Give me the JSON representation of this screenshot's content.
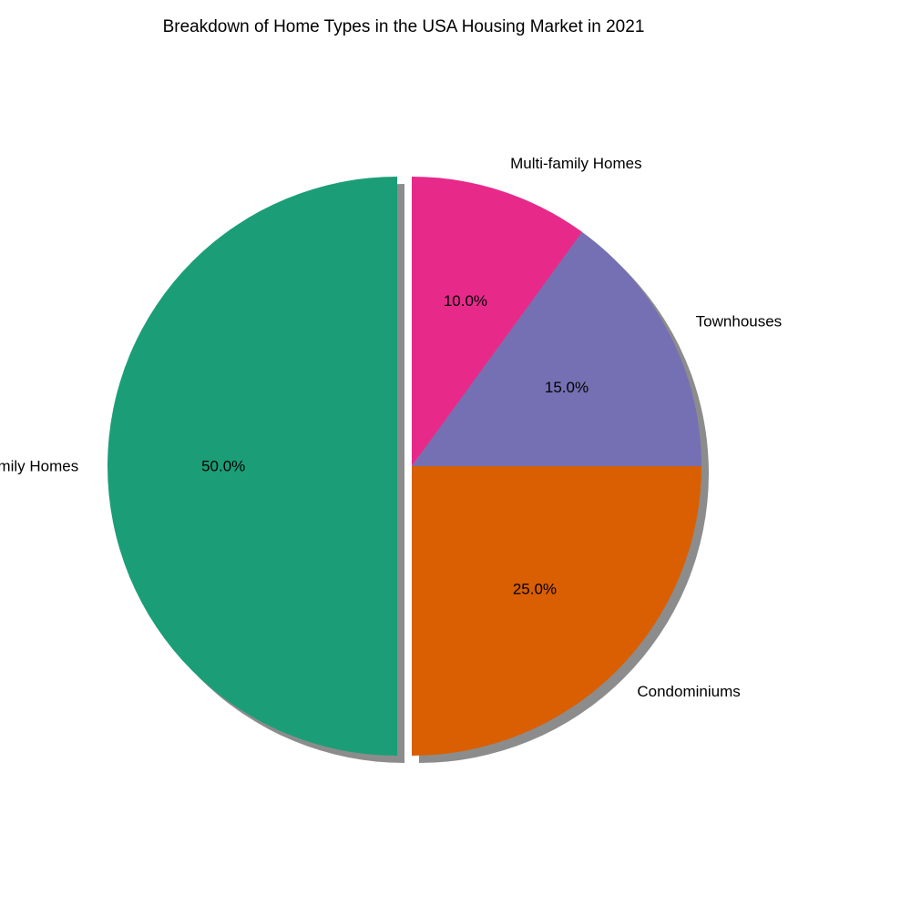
{
  "chart_data": {
    "type": "pie",
    "title": "Breakdown of Home Types in the USA Housing Market in 2021",
    "categories": [
      "Single-family Homes",
      "Condominiums",
      "Townhouses",
      "Multi-family Homes"
    ],
    "values": [
      50.0,
      25.0,
      15.0,
      10.0
    ],
    "percent_labels": [
      "50.0%",
      "25.0%",
      "15.0%",
      "10.0%"
    ],
    "colors": [
      "#1b9e77",
      "#d95f02",
      "#7570b3",
      "#e7298a"
    ],
    "exploded": [
      "Single-family Homes"
    ],
    "shadow": true,
    "start_angle": "top, counter-clockwise",
    "legend": "none"
  }
}
